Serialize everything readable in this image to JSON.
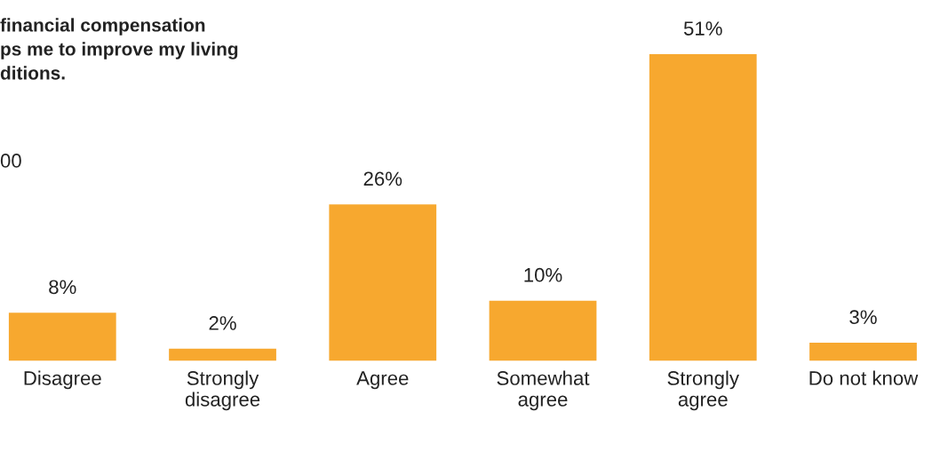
{
  "chart_data": {
    "type": "bar",
    "title": "financial compensation\nps me to improve my living\nditions.",
    "subtitle": "00",
    "categories": [
      "Disagree",
      "Strongly\ndisagree",
      "Agree",
      "Somewhat\nagree",
      "Strongly\nagree",
      "Do not know"
    ],
    "values": [
      8,
      2,
      26,
      10,
      51,
      3
    ],
    "value_labels": [
      "8%",
      "2%",
      "26%",
      "10%",
      "51%",
      "3%"
    ],
    "color": "#f7a82f",
    "grid": false,
    "legend": false
  }
}
